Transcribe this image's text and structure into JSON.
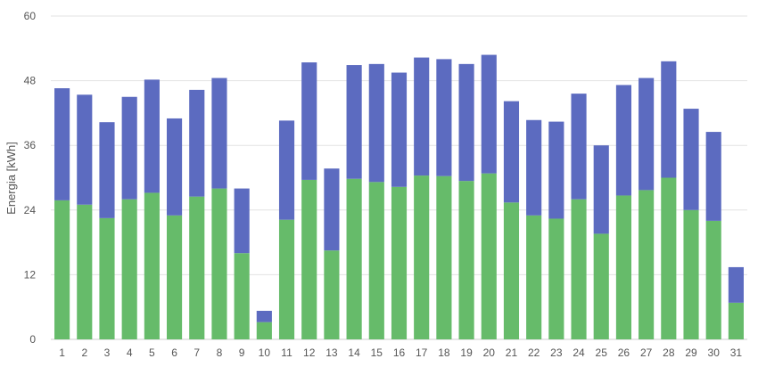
{
  "chart_data": {
    "type": "bar",
    "stacked": true,
    "ylabel": "Energia [kWh]",
    "xlabel": "",
    "ylim": [
      0,
      60
    ],
    "yticks": [
      0,
      12,
      24,
      36,
      48,
      60
    ],
    "grid": true,
    "categories": [
      "1",
      "2",
      "3",
      "4",
      "5",
      "6",
      "7",
      "8",
      "9",
      "10",
      "11",
      "12",
      "13",
      "14",
      "15",
      "16",
      "17",
      "18",
      "19",
      "20",
      "21",
      "22",
      "23",
      "24",
      "25",
      "26",
      "27",
      "28",
      "29",
      "30",
      "31"
    ],
    "series": [
      {
        "color": "#66bb6a",
        "values": [
          25.8,
          25.0,
          22.5,
          26.0,
          27.2,
          23.0,
          26.5,
          28.0,
          16.0,
          3.2,
          22.2,
          29.6,
          16.5,
          29.8,
          29.2,
          28.3,
          30.4,
          30.3,
          29.4,
          30.8,
          25.4,
          23.0,
          22.4,
          26.0,
          19.6,
          26.7,
          27.7,
          30.0,
          24.0,
          22.0,
          6.8
        ]
      },
      {
        "color": "#5c6bc0",
        "values": [
          20.8,
          20.4,
          17.8,
          19.0,
          21.0,
          18.0,
          19.8,
          20.5,
          12.0,
          2.1,
          18.4,
          21.8,
          15.2,
          21.1,
          21.9,
          21.2,
          21.9,
          21.7,
          21.7,
          22.0,
          18.8,
          17.7,
          18.0,
          19.6,
          16.4,
          20.5,
          20.8,
          21.6,
          18.8,
          16.5,
          6.6
        ]
      }
    ]
  }
}
